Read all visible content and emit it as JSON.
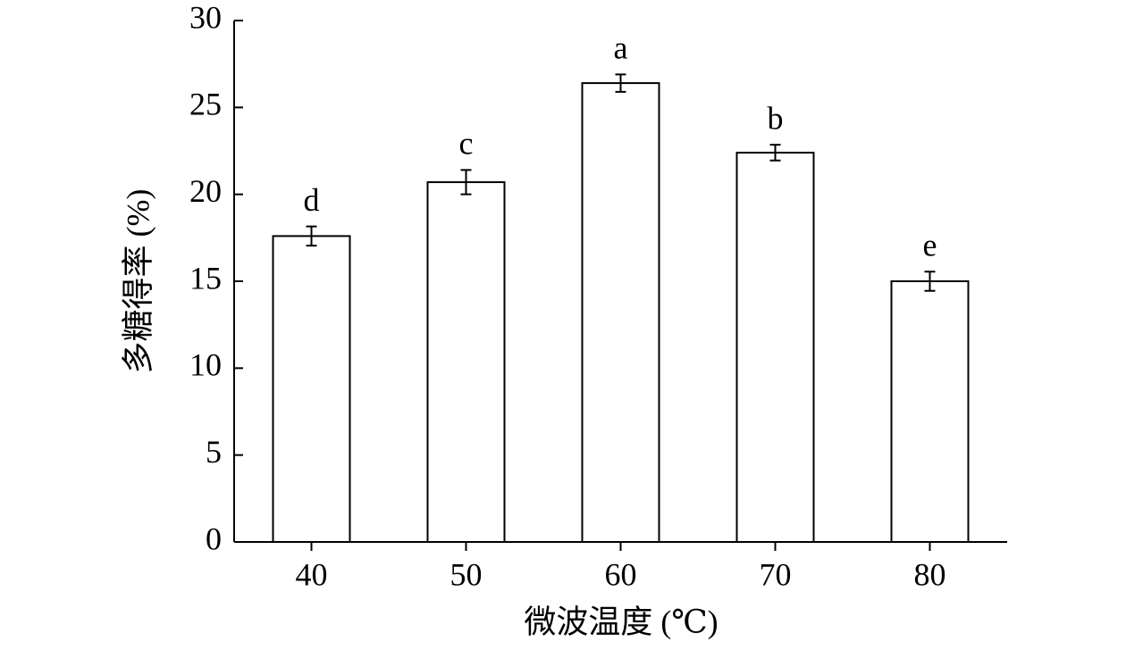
{
  "chart_data": {
    "type": "bar",
    "x_label": "微波温度 (℃)",
    "y_label": "多糖得率 (%)",
    "categories": [
      "40",
      "50",
      "60",
      "70",
      "80"
    ],
    "values": [
      17.6,
      20.7,
      26.4,
      22.4,
      15.0
    ],
    "errors": [
      0.55,
      0.7,
      0.5,
      0.45,
      0.55
    ],
    "annotations": [
      "d",
      "c",
      "a",
      "b",
      "e"
    ],
    "color": "#ffffff",
    "ylim": [
      0,
      30
    ],
    "yticks": [
      0,
      5,
      10,
      15,
      20,
      25,
      30
    ],
    "grid": false
  }
}
